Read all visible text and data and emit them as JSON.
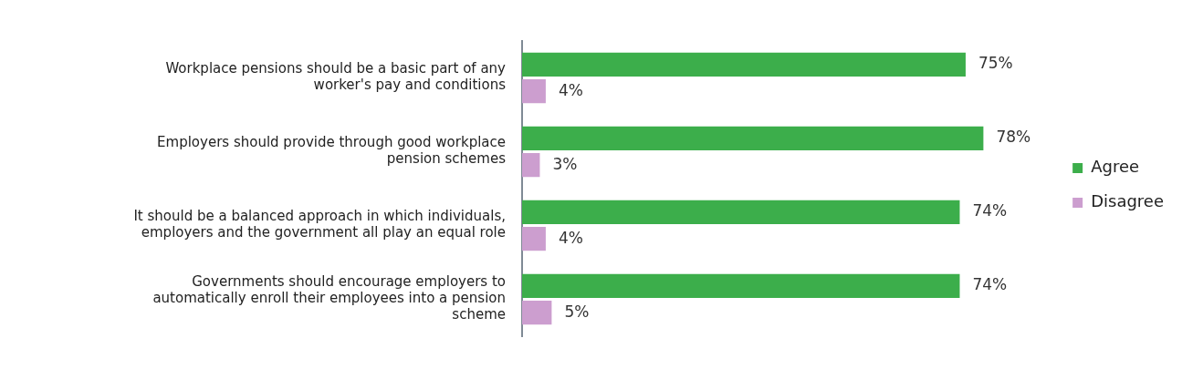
{
  "chart_data": {
    "type": "bar",
    "orientation": "horizontal",
    "categories": [
      "Workplace pensions should be a basic part of any worker's pay and conditions",
      "Employers should provide through good workplace pension schemes",
      "It should be a balanced approach in which individuals, employers and the government all play an equal role",
      "Governments should encourage employers to automatically enroll their employees into a pension scheme"
    ],
    "series": [
      {
        "name": "Agree",
        "color": "#3cae4b",
        "values": [
          75,
          78,
          74,
          74
        ],
        "value_labels": [
          "75%",
          "78%",
          "74%",
          "74%"
        ]
      },
      {
        "name": "Disagree",
        "color": "#cc9ecf",
        "values": [
          4,
          3,
          4,
          5
        ],
        "value_labels": [
          "4%",
          "3%",
          "4%",
          "5%"
        ]
      }
    ],
    "legend": "right",
    "grid": false,
    "tick_labels": "y"
  }
}
